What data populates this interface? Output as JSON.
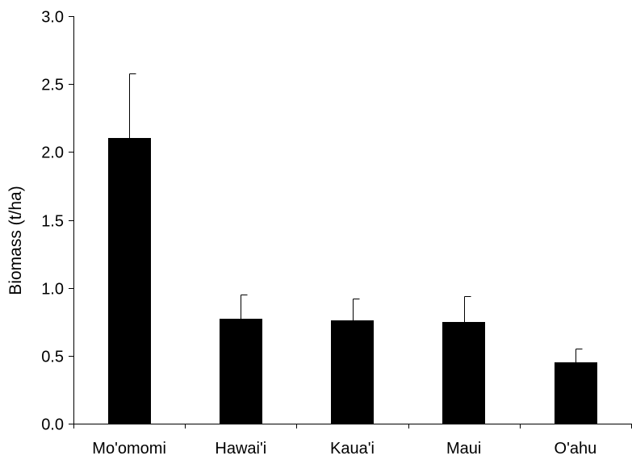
{
  "chart_data": {
    "type": "bar",
    "title": "",
    "xlabel": "",
    "ylabel": "Biomass (t/ha)",
    "ylim": [
      0,
      3.0
    ],
    "yticks": [
      "0.0",
      "0.5",
      "1.0",
      "1.5",
      "2.0",
      "2.5",
      "3.0"
    ],
    "ytick_values": [
      0,
      0.5,
      1.0,
      1.5,
      2.0,
      2.5,
      3.0
    ],
    "categories": [
      "Mo'omomi",
      "Hawai'i",
      "Kaua'i",
      "Maui",
      "O'ahu"
    ],
    "values": [
      2.1,
      0.77,
      0.76,
      0.75,
      0.45
    ],
    "error_upper": [
      0.48,
      0.18,
      0.16,
      0.19,
      0.1
    ],
    "grid": false,
    "legend": "none",
    "bar_color": "#000000"
  }
}
